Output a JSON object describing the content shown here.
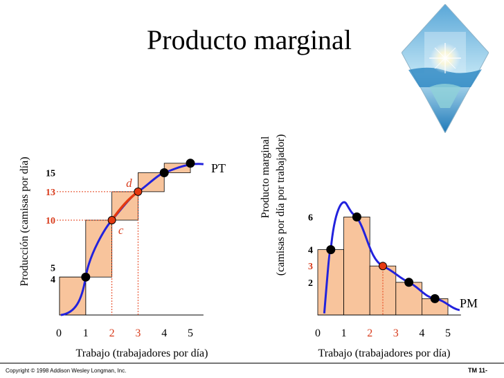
{
  "title": "Producto marginal",
  "footer": {
    "copyright": "Copyright © 1998 Addison Wesley Longman, Inc.",
    "code": "TM 11-"
  },
  "colors": {
    "curve": "#2222dd",
    "highlight": "#e53a10",
    "bar_fill": "#f8c49c",
    "dot": "#000000",
    "red_text": "#d83a1a"
  },
  "chart_data": [
    {
      "type": "line",
      "name": "total-product",
      "series_label": "PT",
      "ylabel": "Producción (camisas por día)",
      "xlabel": "Trabajo (trabajadores por día)",
      "x_ticks": [
        "0",
        "1",
        "2",
        "3",
        "4",
        "5"
      ],
      "y_ticks": [
        "4",
        "5",
        "10",
        "13",
        "15"
      ],
      "red_ticks": [
        "2",
        "3",
        "10",
        "13"
      ],
      "xlim": [
        0,
        5.5
      ],
      "ylim": [
        0,
        16
      ],
      "points": [
        {
          "x": 1,
          "y": 4
        },
        {
          "x": 2,
          "y": 10
        },
        {
          "x": 3,
          "y": 13
        },
        {
          "x": 4,
          "y": 15
        },
        {
          "x": 5,
          "y": 16
        }
      ],
      "steps": [
        {
          "x0": 0,
          "x1": 1,
          "y": 4
        },
        {
          "x0": 1,
          "x1": 2,
          "y": 10
        },
        {
          "x0": 2,
          "x1": 3,
          "y": 13
        },
        {
          "x0": 3,
          "x1": 4,
          "y": 15
        },
        {
          "x0": 4,
          "x1": 5,
          "y": 16
        }
      ],
      "highlight_points": [
        {
          "label": "c",
          "x": 2,
          "y": 10
        },
        {
          "label": "d",
          "x": 3,
          "y": 13
        }
      ]
    },
    {
      "type": "bar",
      "name": "marginal-product",
      "series_label": "PM",
      "ylabel": "Producto marginal",
      "ylabel2": "(camisas por día por trabajador)",
      "xlabel": "Trabajo (trabajadores por día)",
      "x_ticks": [
        "0",
        "1",
        "2",
        "3",
        "4",
        "5"
      ],
      "y_ticks": [
        "2",
        "3",
        "4",
        "6"
      ],
      "red_ticks": [
        "2",
        "3",
        "3"
      ],
      "xlim": [
        0,
        5.5
      ],
      "ylim": [
        0,
        7
      ],
      "bars": [
        {
          "x0": 0,
          "x1": 1,
          "value": 4
        },
        {
          "x0": 1,
          "x1": 2,
          "value": 6
        },
        {
          "x0": 2,
          "x1": 3,
          "value": 3
        },
        {
          "x0": 3,
          "x1": 4,
          "value": 2
        },
        {
          "x0": 4,
          "x1": 5,
          "value": 1
        }
      ],
      "points": [
        {
          "x": 0.5,
          "y": 4
        },
        {
          "x": 1.5,
          "y": 6
        },
        {
          "x": 2.5,
          "y": 3
        },
        {
          "x": 3.5,
          "y": 2
        },
        {
          "x": 4.5,
          "y": 1
        }
      ],
      "highlight_points": [
        {
          "x": 2.5,
          "y": 3
        }
      ]
    }
  ]
}
